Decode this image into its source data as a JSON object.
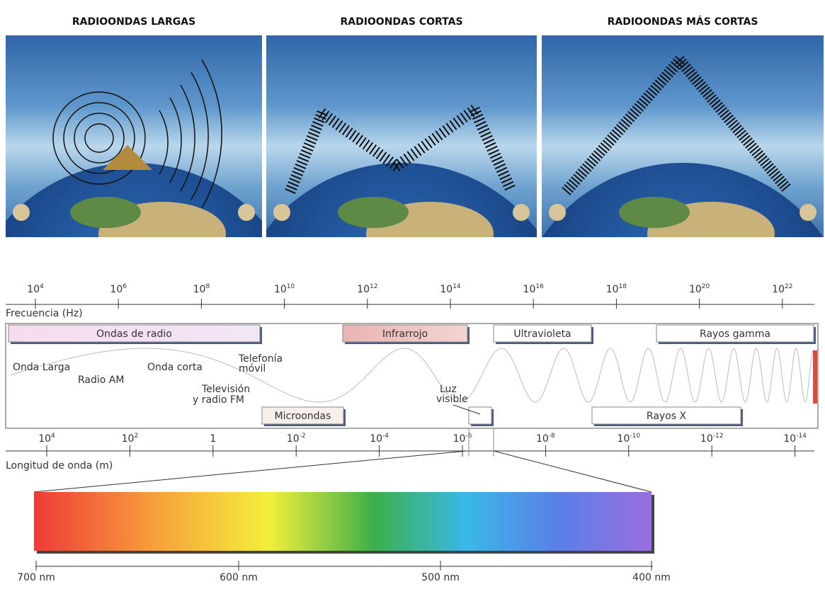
{
  "panels": [
    {
      "title": "RADIOONDAS LARGAS"
    },
    {
      "title": "RADIOONDAS CORTAS"
    },
    {
      "title": "RADIOONDAS MÁS CORTAS"
    }
  ],
  "frequency_axis": {
    "label": "Frecuencia (Hz)",
    "ticks": [
      {
        "base": "10",
        "exponent": "4"
      },
      {
        "base": "10",
        "exponent": "6"
      },
      {
        "base": "10",
        "exponent": "8"
      },
      {
        "base": "10",
        "exponent": "10"
      },
      {
        "base": "10",
        "exponent": "12"
      },
      {
        "base": "10",
        "exponent": "14"
      },
      {
        "base": "10",
        "exponent": "16"
      },
      {
        "base": "10",
        "exponent": "18"
      },
      {
        "base": "10",
        "exponent": "20"
      },
      {
        "base": "10",
        "exponent": "22"
      }
    ]
  },
  "bands": {
    "radio": "Ondas de radio",
    "infrared": "Infrarrojo",
    "ultraviolet": "Ultravioleta",
    "gamma": "Rayos gamma",
    "microwaves": "Microondas",
    "visible": [
      "Luz",
      "visible"
    ],
    "xrays": "Rayos X"
  },
  "wave_labels": {
    "long_wave": "Onda Larga",
    "am": "Radio AM",
    "short_wave": "Onda corta",
    "mobile": [
      "Telefonía",
      "móvil"
    ],
    "tv_fm": [
      "Televisión",
      "y radio FM"
    ]
  },
  "wavelength_axis": {
    "label": "Longitud de onda (m)",
    "ticks": [
      {
        "base": "10",
        "exponent": "4"
      },
      {
        "base": "10",
        "exponent": "2"
      },
      {
        "base": "1"
      },
      {
        "base": "10",
        "exponent": "-2"
      },
      {
        "base": "10",
        "exponent": "-4"
      },
      {
        "base": "10",
        "exponent": "-6"
      },
      {
        "base": "10",
        "exponent": "-8"
      },
      {
        "base": "10",
        "exponent": "-10"
      },
      {
        "base": "10",
        "exponent": "-12"
      },
      {
        "base": "10",
        "exponent": "-14"
      }
    ]
  },
  "visible_spectrum": {
    "ticks": [
      "700 nm",
      "600 nm",
      "500 nm",
      "400 nm"
    ]
  }
}
